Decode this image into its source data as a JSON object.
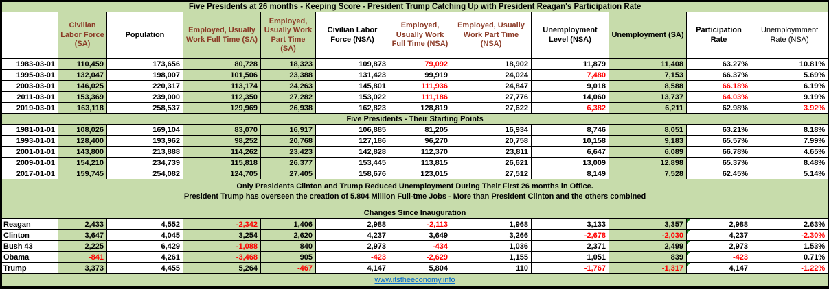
{
  "title": "Five Presidents at 26 months - Keeping Score - President Trump Catching Up with President Reagan's Participation Rate",
  "colors": {
    "cell_green": "#c7dcab",
    "header_maroon": "#8b3a26",
    "negative_red": "#ff0000",
    "link_blue": "#0066cc",
    "flag_green": "#1e7a1e",
    "grid_black": "#000000"
  },
  "columns": [
    {
      "label": "",
      "bg": "white",
      "color": "black",
      "bold": true
    },
    {
      "label": "Civilian Labor Force (SA)",
      "bg": "green",
      "color": "maroon",
      "bold": true
    },
    {
      "label": "Population",
      "bg": "white",
      "color": "black",
      "bold": true
    },
    {
      "label": "Employed, Usually Work Full Time (SA)",
      "bg": "green",
      "color": "maroon",
      "bold": true
    },
    {
      "label": "Employed, Usually Work Part Time (SA)",
      "bg": "green",
      "color": "maroon",
      "bold": true
    },
    {
      "label": "Civilian Labor Force (NSA)",
      "bg": "white",
      "color": "black",
      "bold": true
    },
    {
      "label": "Employed, Usually Work Full Time (NSA)",
      "bg": "white",
      "color": "maroon",
      "bold": true
    },
    {
      "label": "Employed, Usually Work Part Time (NSA)",
      "bg": "white",
      "color": "maroon",
      "bold": true
    },
    {
      "label": "Unemployment Level (NSA)",
      "bg": "white",
      "color": "black",
      "bold": true
    },
    {
      "label": "Unemployment (SA)",
      "bg": "green",
      "color": "black",
      "bold": true
    },
    {
      "label": "Participation Rate",
      "bg": "white",
      "color": "black",
      "bold": true
    },
    {
      "label": "Unemploymment Rate (NSA)",
      "bg": "white",
      "color": "black",
      "bold": false
    }
  ],
  "green_value_cols": [
    0,
    2,
    3,
    8
  ],
  "sections": {
    "at26": {
      "rows": [
        {
          "label": "1983-03-01",
          "values": [
            "110,459",
            "173,656",
            "80,728",
            "18,323",
            "109,873",
            "79,092",
            "18,902",
            "11,879",
            "11,408",
            "63.27%",
            "10.81%"
          ],
          "red": [
            5
          ]
        },
        {
          "label": "1995-03-01",
          "values": [
            "132,047",
            "198,007",
            "101,506",
            "23,388",
            "131,423",
            "99,919",
            "24,024",
            "7,480",
            "7,153",
            "66.37%",
            "5.69%"
          ],
          "red": [
            7
          ]
        },
        {
          "label": "2003-03-01",
          "values": [
            "146,025",
            "220,317",
            "113,174",
            "24,263",
            "145,801",
            "111,936",
            "24,847",
            "9,018",
            "8,588",
            "66.18%",
            "6.19%"
          ],
          "red": [
            5,
            9
          ]
        },
        {
          "label": "2011-03-01",
          "values": [
            "153,369",
            "239,000",
            "112,350",
            "27,282",
            "153,022",
            "111,186",
            "27,776",
            "14,060",
            "13,737",
            "64.03%",
            "9.19%"
          ],
          "red": [
            5,
            9
          ]
        },
        {
          "label": "2019-03-01",
          "values": [
            "163,118",
            "258,537",
            "129,969",
            "26,938",
            "162,823",
            "128,819",
            "27,622",
            "6,382",
            "6,211",
            "62.98%",
            "3.92%"
          ],
          "red": [
            7,
            10
          ]
        }
      ]
    },
    "starting": {
      "header": "Five Presidents - Their Starting Points",
      "rows": [
        {
          "label": "1981-01-01",
          "values": [
            "108,026",
            "169,104",
            "83,070",
            "16,917",
            "106,885",
            "81,205",
            "16,934",
            "8,746",
            "8,051",
            "63.21%",
            "8.18%"
          ],
          "red": []
        },
        {
          "label": "1993-01-01",
          "values": [
            "128,400",
            "193,962",
            "98,252",
            "20,768",
            "127,186",
            "96,270",
            "20,758",
            "10,158",
            "9,183",
            "65.57%",
            "7.99%"
          ],
          "red": []
        },
        {
          "label": "2001-01-01",
          "values": [
            "143,800",
            "213,888",
            "114,262",
            "23,423",
            "142,828",
            "112,370",
            "23,811",
            "6,647",
            "6,089",
            "66.78%",
            "4.65%"
          ],
          "red": []
        },
        {
          "label": "2009-01-01",
          "values": [
            "154,210",
            "234,739",
            "115,818",
            "26,377",
            "153,445",
            "113,815",
            "26,621",
            "13,009",
            "12,898",
            "65.37%",
            "8.48%"
          ],
          "red": []
        },
        {
          "label": "2017-01-01",
          "values": [
            "159,745",
            "254,082",
            "124,705",
            "27,405",
            "158,676",
            "123,015",
            "27,512",
            "8,149",
            "7,528",
            "62.45%",
            "5.14%"
          ],
          "red": []
        }
      ]
    },
    "notes": {
      "line1": "Only Presidents Clinton and Trump Reduced Unemployment During Their First 26 months in Office.",
      "line2": "President Trump has overseen the creation of 5.804 Million Full-tme Jobs - More than President Clinton and the others combined",
      "line3": "Changes Since Inauguration"
    },
    "changes": {
      "flag_col": 9,
      "rows": [
        {
          "label": "Reagan",
          "values": [
            "2,433",
            "4,552",
            "-2,342",
            "1,406",
            "2,988",
            "-2,113",
            "1,968",
            "3,133",
            "3,357",
            "2,988",
            "2.63%"
          ],
          "red": [
            2,
            5
          ]
        },
        {
          "label": "Clinton",
          "values": [
            "3,647",
            "4,045",
            "3,254",
            "2,620",
            "4,237",
            "3,649",
            "3,266",
            "-2,678",
            "-2,030",
            "4,237",
            "-2.30%"
          ],
          "red": [
            7,
            8,
            10
          ]
        },
        {
          "label": "Bush 43",
          "values": [
            "2,225",
            "6,429",
            "-1,088",
            "840",
            "2,973",
            "-434",
            "1,036",
            "2,371",
            "2,499",
            "2,973",
            "1.53%"
          ],
          "red": [
            2,
            5
          ]
        },
        {
          "label": "Obama",
          "values": [
            "-841",
            "4,261",
            "-3,468",
            "905",
            "-423",
            "-2,629",
            "1,155",
            "1,051",
            "839",
            "-423",
            "0.71%"
          ],
          "red": [
            0,
            2,
            4,
            5,
            9
          ]
        },
        {
          "label": "Trump",
          "values": [
            "3,373",
            "4,455",
            "5,264",
            "-467",
            "4,147",
            "5,804",
            "110",
            "-1,767",
            "-1,317",
            "4,147",
            "-1.22%"
          ],
          "red": [
            3,
            7,
            8,
            10
          ]
        }
      ]
    }
  },
  "footer": {
    "link": "www.itstheeconomy.info"
  }
}
